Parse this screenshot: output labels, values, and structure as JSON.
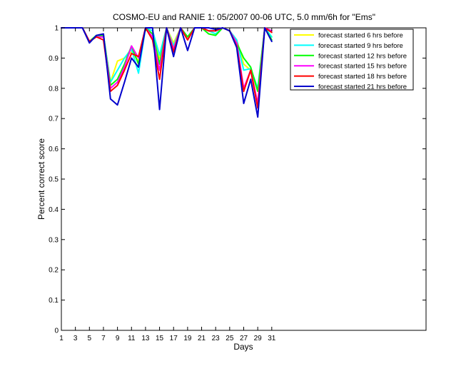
{
  "chart_data": {
    "type": "line",
    "title": "COSMO-EU and RANIE 1: 05/2007 00-06 UTC, 5.0 mm/6h for \"Ems\"",
    "xlabel": "Days",
    "ylabel": "Percent correct score",
    "xlim": [
      1,
      53
    ],
    "ylim": [
      0,
      1
    ],
    "xticks": [
      1,
      3,
      5,
      7,
      9,
      11,
      13,
      15,
      17,
      19,
      21,
      23,
      25,
      27,
      29,
      31
    ],
    "yticks": [
      0,
      0.1,
      0.2,
      0.3,
      0.4,
      0.5,
      0.6,
      0.7,
      0.8,
      0.9,
      1
    ],
    "ytick_labels": [
      "0",
      "0.1",
      "0.2",
      "0.3",
      "0.4",
      "0.5",
      "0.6",
      "0.7",
      "0.8",
      "0.9",
      "1"
    ],
    "grid": false,
    "legend_position": "top-right",
    "x": [
      1,
      2,
      3,
      4,
      5,
      6,
      7,
      8,
      9,
      10,
      11,
      12,
      13,
      14,
      15,
      16,
      17,
      18,
      19,
      20,
      21,
      22,
      23,
      24,
      25,
      26,
      27,
      28,
      29,
      30,
      31
    ],
    "series": [
      {
        "name": "forecast started 6 hrs before",
        "color": "#ffff00",
        "values": [
          1,
          1,
          1,
          1,
          0.955,
          0.975,
          0.975,
          0.82,
          0.89,
          0.9,
          0.92,
          0.89,
          1,
          0.99,
          0.9,
          1,
          0.95,
          1,
          0.97,
          1,
          1,
          0.99,
          0.98,
          1,
          0.99,
          0.96,
          0.88,
          0.86,
          0.79,
          1,
          0.97
        ]
      },
      {
        "name": "forecast started 9 hrs before",
        "color": "#00ffff",
        "values": [
          1,
          1,
          1,
          1,
          0.955,
          0.975,
          0.975,
          0.82,
          0.86,
          0.9,
          0.93,
          0.85,
          1,
          0.99,
          0.91,
          1,
          0.94,
          1,
          0.97,
          1,
          1,
          0.99,
          0.98,
          1,
          0.99,
          0.96,
          0.86,
          0.865,
          0.8,
          1,
          0.97
        ]
      },
      {
        "name": "forecast started 12 hrs before",
        "color": "#00ff00",
        "values": [
          1,
          1,
          1,
          1,
          0.955,
          0.975,
          0.975,
          0.81,
          0.83,
          0.88,
          0.94,
          0.88,
          1,
          0.98,
          0.88,
          1,
          0.93,
          1,
          0.97,
          1,
          1,
          0.98,
          0.975,
          1,
          0.99,
          0.95,
          0.9,
          0.87,
          0.79,
          1,
          0.96
        ]
      },
      {
        "name": "forecast started 15 hrs before",
        "color": "#ff00ff",
        "values": [
          1,
          1,
          1,
          1,
          0.955,
          0.97,
          0.97,
          0.8,
          0.82,
          0.87,
          0.94,
          0.9,
          1,
          0.97,
          0.86,
          1,
          0.93,
          1,
          0.96,
          1,
          1,
          0.99,
          0.99,
          1,
          0.99,
          0.95,
          0.8,
          0.86,
          0.75,
          1,
          0.99
        ]
      },
      {
        "name": "forecast started 18 hrs before",
        "color": "#ff0000",
        "values": [
          1,
          1,
          1,
          1,
          0.955,
          0.97,
          0.96,
          0.79,
          0.81,
          0.86,
          0.915,
          0.905,
          1,
          0.96,
          0.83,
          1,
          0.92,
          1,
          0.96,
          1,
          1,
          0.99,
          0.99,
          1,
          0.99,
          0.94,
          0.79,
          0.86,
          0.735,
          1,
          0.985
        ]
      },
      {
        "name": "forecast started 21 hrs before",
        "color": "#0000cc",
        "values": [
          1,
          1,
          1,
          1,
          0.95,
          0.975,
          0.98,
          0.765,
          0.745,
          0.82,
          0.9,
          0.87,
          1,
          1,
          0.73,
          1,
          0.905,
          1,
          0.925,
          1,
          1,
          1,
          0.995,
          1,
          0.99,
          0.935,
          0.75,
          0.83,
          0.705,
          1,
          0.955
        ]
      }
    ]
  }
}
